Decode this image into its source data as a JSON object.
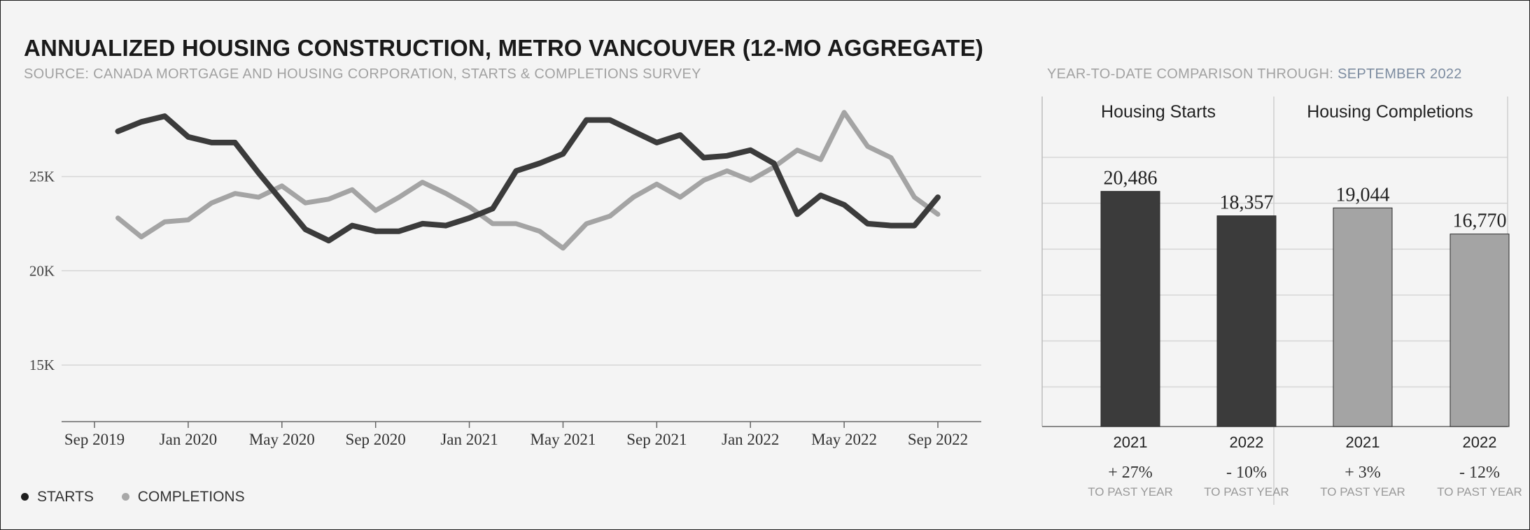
{
  "title": "ANNUALIZED HOUSING CONSTRUCTION, METRO VANCOUVER (12-MO AGGREGATE)",
  "subtitle": "SOURCE: CANADA MORTGAGE AND HOUSING CORPORATION, STARTS & COMPLETIONS SURVEY",
  "ytd_heading": {
    "prefix": "YEAR-TO-DATE COMPARISON THROUGH: ",
    "highlight": "SEPTEMBER 2022"
  },
  "colors": {
    "starts": "#3b3b3b",
    "completions": "#a4a4a4",
    "grid": "#d6d6d6",
    "axis": "#666666"
  },
  "legend": [
    {
      "label": "STARTS",
      "color": "#1e1e1e"
    },
    {
      "label": "COMPLETIONS",
      "color": "#a8a8a8"
    }
  ],
  "chart_data": [
    {
      "type": "line",
      "title": "ANNUALIZED HOUSING CONSTRUCTION, METRO VANCOUVER (12-MO AGGREGATE)",
      "x": [
        "2019-10",
        "2019-11",
        "2019-12",
        "2020-01",
        "2020-02",
        "2020-03",
        "2020-04",
        "2020-05",
        "2020-06",
        "2020-07",
        "2020-08",
        "2020-09",
        "2020-10",
        "2020-11",
        "2020-12",
        "2021-01",
        "2021-02",
        "2021-03",
        "2021-04",
        "2021-05",
        "2021-06",
        "2021-07",
        "2021-08",
        "2021-09",
        "2021-10",
        "2021-11",
        "2021-12",
        "2022-01",
        "2022-02",
        "2022-03",
        "2022-04",
        "2022-05",
        "2022-06",
        "2022-07",
        "2022-08",
        "2022-09"
      ],
      "x_ticks": [
        "Sep 2019",
        "Jan 2020",
        "May 2020",
        "Sep 2020",
        "Jan 2021",
        "May 2021",
        "Sep 2021",
        "Jan 2022",
        "May 2022",
        "Sep 2022"
      ],
      "x_tick_positions": [
        "2019-09",
        "2020-01",
        "2020-05",
        "2020-09",
        "2021-01",
        "2021-05",
        "2021-09",
        "2022-01",
        "2022-05",
        "2022-09"
      ],
      "y_ticks": [
        "15K",
        "20K",
        "25K"
      ],
      "y_tick_values": [
        15000,
        20000,
        25000
      ],
      "ylim": [
        12000,
        28800
      ],
      "series": [
        {
          "name": "STARTS",
          "values": [
            27400,
            27900,
            28200,
            27100,
            26800,
            26800,
            25200,
            23700,
            22200,
            21600,
            22400,
            22100,
            22100,
            22500,
            22400,
            22800,
            23300,
            25300,
            25700,
            26200,
            28000,
            28000,
            27400,
            26800,
            27200,
            26000,
            26100,
            26400,
            25700,
            23000,
            24000,
            23500,
            22500,
            22400,
            22400,
            23900
          ]
        },
        {
          "name": "COMPLETIONS",
          "values": [
            22800,
            21800,
            22600,
            22700,
            23600,
            24100,
            23900,
            24500,
            23600,
            23800,
            24300,
            23200,
            23900,
            24700,
            24100,
            23400,
            22500,
            22500,
            22100,
            21200,
            22500,
            22900,
            23900,
            24600,
            23900,
            24800,
            25300,
            24800,
            25500,
            26400,
            25900,
            28400,
            26600,
            26000,
            23900,
            23000
          ]
        }
      ]
    },
    {
      "type": "bar",
      "title": "YEAR-TO-DATE COMPARISON THROUGH: SEPTEMBER 2022",
      "ylim": [
        0,
        24000
      ],
      "groups": [
        {
          "name": "Housing Starts",
          "bars": [
            {
              "year": "2021",
              "value": 20486,
              "label": "20,486",
              "change": "+ 27%",
              "change_note": "TO PAST YEAR"
            },
            {
              "year": "2022",
              "value": 18357,
              "label": "18,357",
              "change": "- 10%",
              "change_note": "TO PAST YEAR"
            }
          ]
        },
        {
          "name": "Housing Completions",
          "bars": [
            {
              "year": "2021",
              "value": 19044,
              "label": "19,044",
              "change": "+ 3%",
              "change_note": "TO PAST YEAR"
            },
            {
              "year": "2022",
              "value": 16770,
              "label": "16,770",
              "change": "- 12%",
              "change_note": "TO PAST YEAR"
            }
          ]
        }
      ]
    }
  ]
}
